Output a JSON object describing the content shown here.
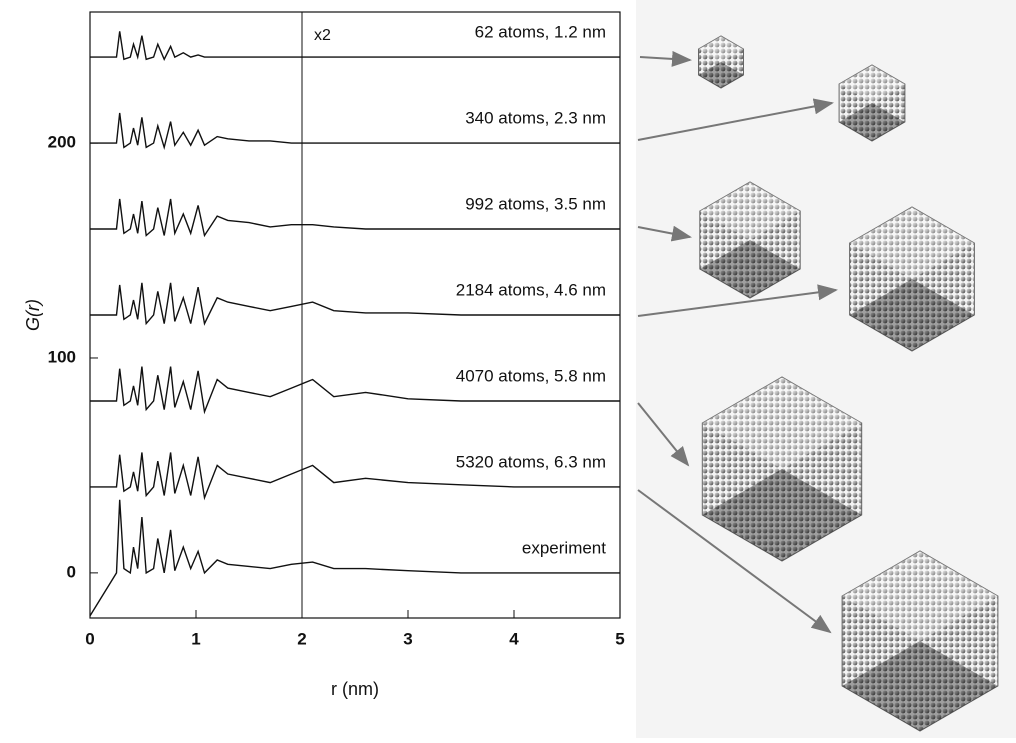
{
  "chart_data": {
    "type": "line",
    "x_label": "r (nm)",
    "y_label": "G(r)",
    "annotation": "x2",
    "x": [
      0,
      0.25,
      0.28,
      0.32,
      0.38,
      0.41,
      0.45,
      0.49,
      0.53,
      0.6,
      0.64,
      0.7,
      0.76,
      0.8,
      0.88,
      0.95,
      1.02,
      1.08,
      1.2,
      1.3,
      1.5,
      1.7,
      1.9,
      2.1,
      2.3,
      2.6,
      3.0,
      3.5,
      4.0,
      5.0
    ],
    "series": [
      {
        "name": "62 atoms, 1.2 nm",
        "color": "#111111",
        "values": [
          240,
          240,
          252,
          239,
          240,
          246,
          240,
          250,
          239,
          240,
          246,
          239,
          245,
          240,
          242,
          240,
          241,
          240,
          240,
          240,
          240,
          240,
          240,
          240,
          240,
          240,
          240,
          240,
          240,
          240
        ]
      },
      {
        "name": "340 atoms, 2.3 nm",
        "color": "#111111",
        "values": [
          200,
          200,
          214,
          198,
          200,
          207,
          199,
          212,
          198,
          200,
          208,
          198,
          210,
          199,
          205,
          199,
          206,
          199,
          203,
          202,
          201,
          201,
          200,
          200,
          200,
          200,
          200,
          200,
          200,
          200
        ]
      },
      {
        "name": "992 atoms, 3.5 nm",
        "color": "#111111",
        "values": [
          160,
          160,
          174,
          158,
          160,
          167,
          158,
          173,
          157,
          160,
          170,
          157,
          174,
          158,
          167,
          158,
          171,
          157,
          166,
          164,
          163,
          161,
          162,
          162,
          161,
          160,
          160,
          160,
          160,
          160
        ]
      },
      {
        "name": "2184 atoms, 4.6 nm",
        "color": "#111111",
        "values": [
          120,
          120,
          134,
          118,
          120,
          127,
          118,
          135,
          116,
          120,
          131,
          116,
          135,
          117,
          128,
          116,
          133,
          116,
          128,
          126,
          124,
          122,
          124,
          126,
          122,
          121,
          121,
          120,
          120,
          120
        ]
      },
      {
        "name": "4070 atoms, 5.8 nm",
        "color": "#111111",
        "values": [
          80,
          80,
          95,
          78,
          80,
          87,
          78,
          96,
          76,
          80,
          92,
          76,
          96,
          77,
          89,
          76,
          94,
          75,
          90,
          86,
          84,
          82,
          86,
          90,
          82,
          84,
          81,
          80,
          80,
          80
        ]
      },
      {
        "name": "5320 atoms, 6.3 nm",
        "color": "#111111",
        "values": [
          40,
          40,
          55,
          38,
          40,
          47,
          38,
          56,
          36,
          40,
          52,
          36,
          56,
          37,
          50,
          36,
          54,
          35,
          50,
          46,
          44,
          42,
          46,
          50,
          42,
          44,
          42,
          41,
          40,
          40
        ]
      },
      {
        "name": "experiment",
        "color": "#111111",
        "values": [
          -20,
          0,
          34,
          2,
          0,
          12,
          2,
          26,
          0,
          2,
          16,
          0,
          20,
          1,
          12,
          2,
          10,
          0,
          6,
          4,
          3,
          2,
          4,
          5,
          2,
          2,
          1,
          0,
          0,
          0
        ]
      }
    ],
    "xlim": [
      0,
      5
    ],
    "xticks": [
      0,
      1,
      2,
      3,
      4,
      5
    ],
    "ylim": [
      -21,
      261
    ],
    "yticks": [
      0,
      100,
      200
    ],
    "marker_line_x": 2
  }
}
